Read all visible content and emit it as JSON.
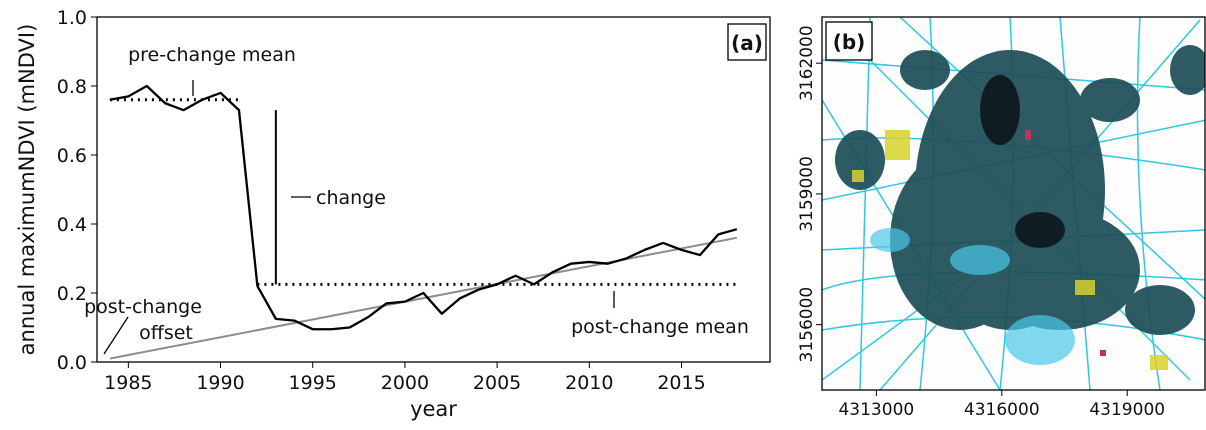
{
  "chart_data": [
    {
      "type": "line",
      "panel_label": "(a)",
      "x_label": "year",
      "y_label": "annual maximumNDVI (mNDVI)",
      "x": [
        1984,
        1985,
        1986,
        1987,
        1988,
        1989,
        1990,
        1991,
        1992,
        1993,
        1994,
        1995,
        1996,
        1997,
        1998,
        1999,
        2000,
        2001,
        2002,
        2003,
        2004,
        2005,
        2006,
        2007,
        2008,
        2009,
        2010,
        2011,
        2012,
        2013,
        2014,
        2015,
        2016,
        2017,
        2018
      ],
      "series": [
        {
          "color": "#000000",
          "values": [
            0.76,
            0.77,
            0.8,
            0.75,
            0.73,
            0.76,
            0.78,
            0.73,
            0.22,
            0.125,
            0.12,
            0.095,
            0.095,
            0.1,
            0.13,
            0.17,
            0.175,
            0.2,
            0.14,
            0.185,
            0.21,
            0.225,
            0.25,
            0.225,
            0.26,
            0.285,
            0.29,
            0.285,
            0.3,
            0.325,
            0.345,
            0.325,
            0.31,
            0.37,
            0.385
          ]
        }
      ],
      "lines": [
        {
          "x": [
            1984,
            2018
          ],
          "values": [
            0.01,
            0.36
          ],
          "color": "#8c8c8c",
          "style": "solid"
        },
        {
          "x": [
            1984,
            1991
          ],
          "values": [
            0.76,
            0.76
          ],
          "color": "#000000",
          "style": "dotted"
        },
        {
          "x": [
            1992,
            2018
          ],
          "values": [
            0.225,
            0.225
          ],
          "color": "#000000",
          "style": "dotted"
        },
        {
          "x": [
            1993,
            1993
          ],
          "values": [
            0.225,
            0.73
          ],
          "color": "#000000",
          "style": "solid"
        }
      ],
      "annotations": [
        [
          "pre-change mean"
        ],
        [
          "change"
        ],
        [
          "post-change",
          "offset"
        ],
        [
          "post-change mean"
        ]
      ],
      "xlim": [
        1983.3,
        2019.8
      ],
      "ylim": [
        0,
        1
      ],
      "xticks": [
        1985,
        1990,
        1995,
        2000,
        2005,
        2010,
        2015
      ],
      "yticks": [
        {
          "value": 0,
          "label": "0.0"
        },
        0.2,
        0.4,
        0.6,
        0.8,
        {
          "value": 1,
          "label": "1.0"
        }
      ]
    },
    {
      "type": "map",
      "panel_label": "(b)",
      "xlim": [
        4311700,
        4320860
      ],
      "ylim": [
        3154500,
        3163060
      ],
      "xticks": [
        4313000,
        4316000,
        4319000
      ],
      "yticks": [
        3156000,
        3159000,
        3162000
      ]
    }
  ]
}
